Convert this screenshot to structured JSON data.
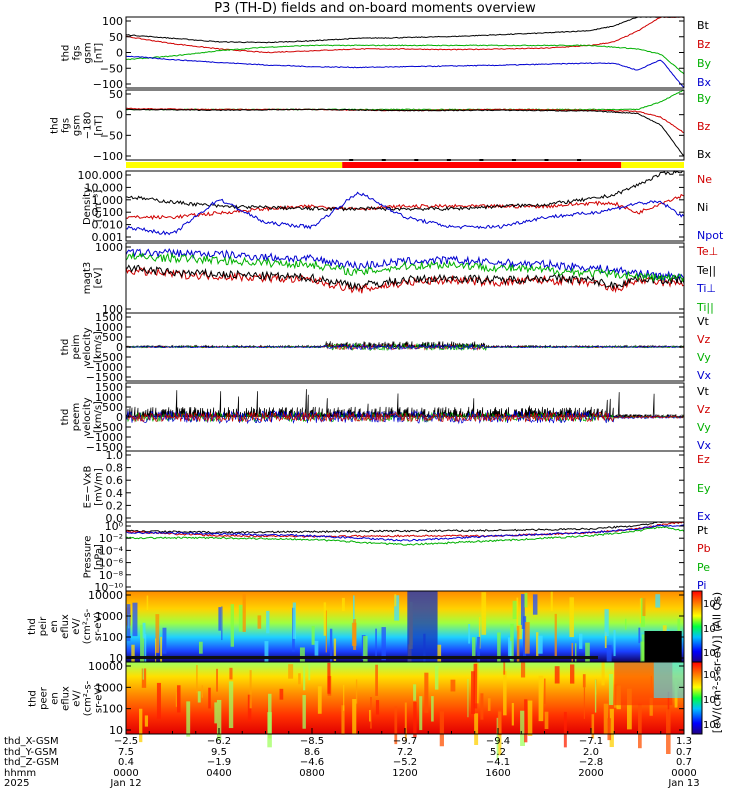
{
  "title": "P3 (TH-D) fields and on-board moments overview",
  "panels": [
    {
      "id": "fgs_gsm",
      "ylabel": [
        "thd",
        "fgs",
        "gsm",
        "[nT]"
      ],
      "ticks": [
        "100",
        "50",
        "0",
        "−50",
        "−100"
      ],
      "legend": [
        {
          "t": "Bt",
          "c": "#000000"
        },
        {
          "t": "Bz",
          "c": "#d00000"
        },
        {
          "t": "By",
          "c": "#00b000"
        },
        {
          "t": "Bx",
          "c": "#0000d0"
        }
      ]
    },
    {
      "id": "fgs_gsm_m",
      "ylabel": [
        "thd",
        "fgs",
        "gsm",
        "−180",
        "[nT]"
      ],
      "ticks": [
        "50",
        "0",
        "−50",
        "−100"
      ],
      "legend": [
        {
          "t": "By",
          "c": "#00b000"
        },
        {
          "t": "Bz",
          "c": "#d00000"
        },
        {
          "t": "Bx",
          "c": "#000000"
        }
      ]
    },
    {
      "id": "density",
      "ylabel": [
        "Density",
        "[cm⁻³]"
      ],
      "ticks": [
        "100.000",
        "10.000",
        "1.000",
        "0.100",
        "0.010",
        "0.001"
      ],
      "legend": [
        {
          "t": "Ne",
          "c": "#d00000"
        },
        {
          "t": "Ni",
          "c": "#000000"
        },
        {
          "t": "Npot",
          "c": "#0000d0"
        }
      ]
    },
    {
      "id": "temp",
      "ylabel": [
        "magt3",
        "[eV]"
      ],
      "ticks": [
        "1000",
        "100"
      ],
      "legend": [
        {
          "t": "Te⊥",
          "c": "#d00000"
        },
        {
          "t": "Te||",
          "c": "#000000"
        },
        {
          "t": "Ti⊥",
          "c": "#0000d0"
        },
        {
          "t": "Ti||",
          "c": "#00b000"
        }
      ]
    },
    {
      "id": "peim",
      "ylabel": [
        "thd",
        "peim",
        "velocity",
        "[km/s]"
      ],
      "ticks": [
        "1500",
        "1000",
        "500",
        "0",
        "−500",
        "−1000",
        "−1500"
      ],
      "legend": [
        {
          "t": "Vt",
          "c": "#000000"
        },
        {
          "t": "Vz",
          "c": "#d00000"
        },
        {
          "t": "Vy",
          "c": "#00b000"
        },
        {
          "t": "Vx",
          "c": "#0000d0"
        }
      ]
    },
    {
      "id": "peem",
      "ylabel": [
        "thd",
        "peem",
        "velocity",
        "[km/s]"
      ],
      "ticks": [
        "1500",
        "1000",
        "500",
        "0",
        "−500",
        "−1000",
        "−1500"
      ],
      "legend": [
        {
          "t": "Vt",
          "c": "#000000"
        },
        {
          "t": "Vz",
          "c": "#d00000"
        },
        {
          "t": "Vy",
          "c": "#00b000"
        },
        {
          "t": "Vx",
          "c": "#0000d0"
        }
      ]
    },
    {
      "id": "efield",
      "ylabel": [
        "E=−VxB",
        "[mV/m]"
      ],
      "ticks": [
        "1.0",
        "0.8",
        "0.6",
        "0.4",
        "0.2",
        "0.0"
      ],
      "legend": [
        {
          "t": "Ez",
          "c": "#d00000"
        },
        {
          "t": "Ey",
          "c": "#00b000"
        },
        {
          "t": "Ex",
          "c": "#0000d0"
        }
      ]
    },
    {
      "id": "pressure",
      "ylabel": [
        "Pressure",
        "[nPa]"
      ],
      "ticks": [
        "10⁰",
        "10⁻²",
        "10⁻⁴",
        "10⁻⁶",
        "10⁻⁸",
        "10⁻¹⁰"
      ],
      "legend": [
        {
          "t": "Pt",
          "c": "#000000"
        },
        {
          "t": "Pb",
          "c": "#d00000"
        },
        {
          "t": "Pe",
          "c": "#00b000"
        },
        {
          "t": "Pi",
          "c": "#0000d0"
        }
      ]
    },
    {
      "id": "peir",
      "ylabel": [
        "thd",
        "peir",
        "en",
        "eflux",
        "eV/",
        "(cm²-s-",
        "sr-eV)"
      ],
      "ticks": [
        "10000",
        "1000",
        "100",
        "10"
      ],
      "colorbar": [
        "10⁶",
        "10⁴",
        "10²"
      ]
    },
    {
      "id": "peer",
      "ylabel": [
        "thd",
        "peer",
        "en",
        "eflux",
        "eV/",
        "(cm²-s-",
        "sr-eV)"
      ],
      "ticks": [
        "10000",
        "1000",
        "100",
        "10"
      ],
      "colorbar": [
        "10⁶",
        "10⁴",
        "10²"
      ]
    }
  ],
  "colorbar_label": "[eV/(cm²-s-sr-eV)] (All Qs)",
  "x_axis": {
    "rows": [
      {
        "label": "thd_X-GSM",
        "values": [
          "−2.5",
          "−6.2",
          "−8.5",
          "−9.7",
          "−9.4",
          "−7.1",
          "1.3"
        ]
      },
      {
        "label": "thd_Y-GSM",
        "values": [
          "7.5",
          "9.5",
          "8.6",
          "7.2",
          "5.2",
          "2.0",
          "0.7"
        ]
      },
      {
        "label": "thd_Z-GSM",
        "values": [
          "0.4",
          "−1.9",
          "−4.6",
          "−5.2",
          "−4.1",
          "−2.8",
          "0.7"
        ]
      },
      {
        "label": "hhmm",
        "values": [
          "0000",
          "0400",
          "0800",
          "1200",
          "1600",
          "2000",
          "0000"
        ]
      },
      {
        "label": "2025",
        "values": [
          "Jan 12",
          "",
          "",
          "",
          "",
          "",
          "Jan 13"
        ]
      }
    ]
  },
  "chart_data": [
    {
      "type": "line",
      "panel": "fgs_gsm",
      "ylim": [
        -100,
        100
      ],
      "x_hours": [
        0,
        2,
        4,
        6,
        8,
        10,
        12,
        14,
        16,
        18,
        20,
        21,
        22,
        23,
        24
      ],
      "series": [
        {
          "name": "Bt",
          "values": [
            50,
            40,
            30,
            28,
            33,
            40,
            42,
            45,
            50,
            55,
            62,
            75,
            100,
            100,
            100
          ]
        },
        {
          "name": "Bz",
          "values": [
            45,
            25,
            10,
            0,
            5,
            10,
            10,
            8,
            10,
            12,
            20,
            30,
            60,
            100,
            100
          ]
        },
        {
          "name": "By",
          "values": [
            -20,
            -10,
            5,
            15,
            20,
            20,
            20,
            20,
            20,
            20,
            20,
            15,
            10,
            -5,
            -60
          ]
        },
        {
          "name": "Bx",
          "values": [
            -10,
            -20,
            -28,
            -35,
            -40,
            -42,
            -40,
            -38,
            -36,
            -33,
            -30,
            -30,
            -50,
            -20,
            -100
          ]
        }
      ]
    },
    {
      "type": "line",
      "panel": "fgs_gsm_m",
      "ylim": [
        -130,
        50
      ],
      "x_hours": [
        0,
        4,
        8,
        12,
        16,
        20,
        22,
        23,
        24
      ],
      "series": [
        {
          "name": "By",
          "values": [
            0,
            0,
            0,
            0,
            0,
            0,
            0,
            20,
            50
          ]
        },
        {
          "name": "Bz",
          "values": [
            2,
            0,
            0,
            -3,
            0,
            -2,
            -5,
            -20,
            -60
          ]
        },
        {
          "name": "Bx",
          "values": [
            0,
            -2,
            0,
            -3,
            -2,
            -4,
            -10,
            -40,
            -120
          ]
        }
      ]
    },
    {
      "type": "line",
      "panel": "density",
      "ylog": true,
      "ylim": [
        0.001,
        100
      ],
      "x_hours": [
        0,
        2,
        4,
        6,
        8,
        10,
        12,
        14,
        16,
        18,
        20,
        21,
        22,
        23,
        24
      ],
      "series": [
        {
          "name": "Ne",
          "values": [
            0.05,
            0.05,
            0.1,
            0.2,
            0.3,
            0.2,
            0.3,
            0.3,
            0.3,
            0.3,
            0.5,
            0.5,
            0.1,
            0.5,
            2
          ]
        },
        {
          "name": "Ni",
          "values": [
            1.5,
            0.6,
            0.3,
            0.25,
            0.2,
            0.2,
            0.2,
            0.2,
            0.3,
            0.4,
            1.0,
            2.0,
            10,
            60,
            100
          ]
        },
        {
          "name": "Npot",
          "values": [
            0.01,
            0.003,
            1.0,
            0.02,
            0.01,
            3.0,
            0.05,
            0.01,
            0.01,
            0.05,
            0.1,
            0.2,
            0.5,
            0.6,
            0.05
          ]
        }
      ]
    },
    {
      "type": "line",
      "panel": "temp",
      "ylog": true,
      "ylim": [
        30,
        4000
      ],
      "x_hours": [
        0,
        2,
        4,
        6,
        8,
        10,
        12,
        14,
        16,
        18,
        20,
        21,
        22,
        23,
        24
      ],
      "series": [
        {
          "name": "Te⊥",
          "values": [
            600,
            450,
            400,
            350,
            300,
            150,
            250,
            300,
            250,
            300,
            250,
            150,
            300,
            250,
            250
          ]
        },
        {
          "name": "Te||",
          "values": [
            700,
            500,
            450,
            400,
            350,
            200,
            300,
            350,
            300,
            350,
            300,
            200,
            350,
            300,
            300
          ]
        },
        {
          "name": "Ti⊥",
          "values": [
            2000,
            2000,
            1800,
            1500,
            1300,
            800,
            1100,
            1200,
            1000,
            900,
            700,
            600,
            500,
            400,
            400
          ]
        },
        {
          "name": "Ti||",
          "values": [
            1500,
            1400,
            1200,
            1000,
            900,
            500,
            800,
            900,
            700,
            600,
            500,
            450,
            400,
            350,
            350
          ]
        }
      ]
    },
    {
      "type": "line",
      "panel": "peim",
      "ylim": [
        -1500,
        1500
      ],
      "note": "velocities near zero with bursts 0900-1500"
    },
    {
      "type": "line",
      "panel": "peem",
      "ylim": [
        -1500,
        1500
      ],
      "note": "noisy ±500 with bursts to ±1000, 0400-1600"
    },
    {
      "type": "line",
      "panel": "pressure",
      "ylog": true,
      "ylim": [
        1e-10,
        1
      ],
      "x_hours": [
        0,
        4,
        8,
        12,
        16,
        20,
        22,
        23,
        24
      ],
      "series": [
        {
          "name": "Pt",
          "values": [
            0.05,
            0.03,
            0.04,
            0.05,
            0.06,
            0.1,
            0.3,
            1,
            1
          ]
        },
        {
          "name": "Pb",
          "values": [
            0.04,
            0.01,
            0.008,
            0.01,
            0.01,
            0.03,
            0.1,
            0.4,
            1
          ]
        },
        {
          "name": "Pe",
          "values": [
            0.005,
            0.005,
            0.003,
            0.0005,
            0.002,
            0.01,
            0.05,
            0.2,
            0.05
          ]
        },
        {
          "name": "Pi",
          "values": [
            0.03,
            0.02,
            0.01,
            0.002,
            0.01,
            0.03,
            0.1,
            0.3,
            0.3
          ]
        }
      ]
    },
    {
      "type": "heatmap",
      "panel": "peir",
      "ylog": true,
      "ylim": [
        5,
        25000
      ],
      "zlim": [
        "10²",
        "10⁶"
      ]
    },
    {
      "type": "heatmap",
      "panel": "peer",
      "ylog": true,
      "ylim": [
        5,
        25000
      ],
      "zlim": [
        "10²",
        "10⁶"
      ]
    }
  ],
  "mode_bar": {
    "colors": [
      "#ffff00",
      "#ff0000",
      "#ffff00"
    ],
    "breaks_hours": [
      0,
      9.3,
      21.3,
      24
    ]
  }
}
